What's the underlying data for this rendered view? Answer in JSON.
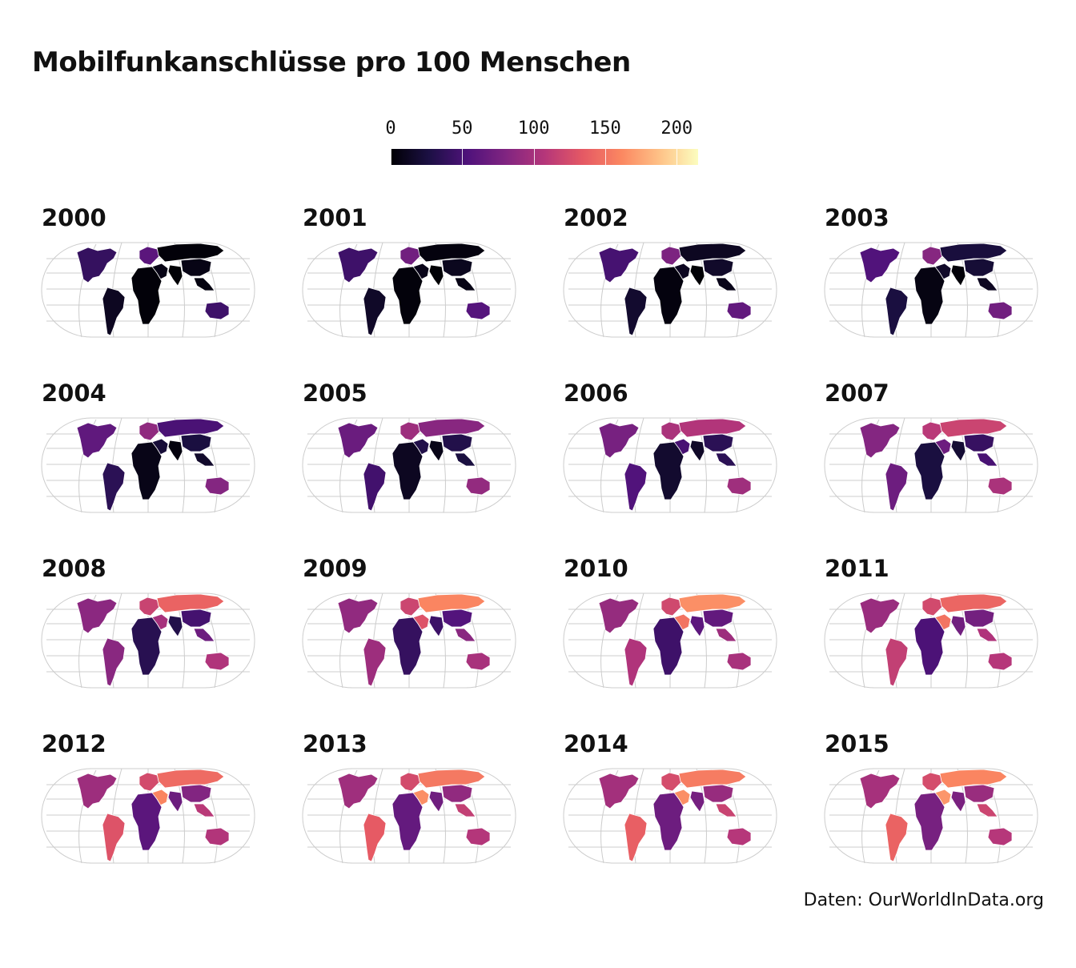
{
  "title": "Mobilfunkanschlüsse pro 100 Menschen",
  "source": "Daten: OurWorldInData.org",
  "legend": {
    "ticks": [
      0,
      50,
      100,
      150,
      200
    ],
    "min": 0,
    "max": 215
  },
  "colors": {
    "graticule": "#cccccc",
    "border": "#ffffff",
    "palette_magma": [
      "#000004",
      "#1c1044",
      "#4f127b",
      "#812581",
      "#b5367a",
      "#e55964",
      "#fb8761",
      "#fec287",
      "#fcfdbf"
    ]
  },
  "chart_data": {
    "type": "choropleth-small-multiples",
    "measure": "Mobilfunkanschlüsse pro 100 Menschen",
    "color_scale": "magma",
    "range": [
      0,
      215
    ],
    "panels": [
      {
        "year": "2000",
        "values": {
          "north_america": 40,
          "europe": 60,
          "south_america": 12,
          "africa": 2,
          "russia": 2,
          "middle_east": 7,
          "south_asia": 1,
          "east_asia": 7,
          "southeast_asia": 5,
          "australia": 45
        }
      },
      {
        "year": "2001",
        "values": {
          "north_america": 45,
          "europe": 72,
          "south_america": 15,
          "africa": 3,
          "russia": 4,
          "middle_east": 9,
          "south_asia": 1,
          "east_asia": 11,
          "southeast_asia": 7,
          "australia": 57
        }
      },
      {
        "year": "2002",
        "values": {
          "north_america": 49,
          "europe": 78,
          "south_america": 18,
          "africa": 4,
          "russia": 12,
          "middle_east": 12,
          "south_asia": 1,
          "east_asia": 16,
          "southeast_asia": 9,
          "australia": 64
        }
      },
      {
        "year": "2003",
        "values": {
          "north_america": 55,
          "europe": 83,
          "south_america": 25,
          "africa": 6,
          "russia": 24,
          "middle_east": 16,
          "south_asia": 2,
          "east_asia": 21,
          "southeast_asia": 12,
          "australia": 72
        }
      },
      {
        "year": "2004",
        "values": {
          "north_america": 63,
          "europe": 88,
          "south_america": 35,
          "africa": 8,
          "russia": 51,
          "middle_east": 22,
          "south_asia": 4,
          "east_asia": 25,
          "southeast_asia": 17,
          "australia": 82
        }
      },
      {
        "year": "2005",
        "values": {
          "north_america": 68,
          "europe": 95,
          "south_america": 47,
          "africa": 12,
          "russia": 84,
          "middle_east": 30,
          "south_asia": 8,
          "east_asia": 30,
          "southeast_asia": 25,
          "australia": 90
        }
      },
      {
        "year": "2006",
        "values": {
          "north_america": 75,
          "europe": 102,
          "south_america": 55,
          "africa": 18,
          "russia": 106,
          "middle_east": 50,
          "south_asia": 15,
          "east_asia": 35,
          "southeast_asia": 35,
          "australia": 96
        }
      },
      {
        "year": "2007",
        "values": {
          "north_america": 82,
          "europe": 110,
          "south_america": 70,
          "africa": 25,
          "russia": 119,
          "middle_east": 70,
          "south_asia": 20,
          "east_asia": 41,
          "southeast_asia": 50,
          "australia": 102
        }
      },
      {
        "year": "2008",
        "values": {
          "north_america": 86,
          "europe": 118,
          "south_america": 85,
          "africa": 33,
          "russia": 140,
          "middle_east": 100,
          "south_asia": 30,
          "east_asia": 48,
          "southeast_asia": 70,
          "australia": 105
        }
      },
      {
        "year": "2009",
        "values": {
          "north_america": 89,
          "europe": 120,
          "south_america": 95,
          "africa": 40,
          "russia": 160,
          "middle_east": 130,
          "south_asia": 44,
          "east_asia": 56,
          "southeast_asia": 85,
          "australia": 101
        }
      },
      {
        "year": "2010",
        "values": {
          "north_america": 91,
          "europe": 122,
          "south_america": 105,
          "africa": 45,
          "russia": 165,
          "middle_east": 150,
          "south_asia": 61,
          "east_asia": 64,
          "southeast_asia": 95,
          "australia": 101
        }
      },
      {
        "year": "2011",
        "values": {
          "north_america": 93,
          "europe": 123,
          "south_america": 115,
          "africa": 52,
          "russia": 142,
          "middle_east": 150,
          "south_asia": 72,
          "east_asia": 73,
          "southeast_asia": 105,
          "australia": 108
        }
      },
      {
        "year": "2012",
        "values": {
          "north_america": 95,
          "europe": 124,
          "south_america": 130,
          "africa": 60,
          "russia": 145,
          "middle_east": 160,
          "south_asia": 69,
          "east_asia": 81,
          "southeast_asia": 110,
          "australia": 106
        }
      },
      {
        "year": "2013",
        "values": {
          "north_america": 96,
          "europe": 124,
          "south_america": 135,
          "africa": 65,
          "russia": 153,
          "middle_east": 165,
          "south_asia": 71,
          "east_asia": 89,
          "southeast_asia": 115,
          "australia": 107
        }
      },
      {
        "year": "2014",
        "values": {
          "north_america": 98,
          "europe": 125,
          "south_america": 138,
          "africa": 70,
          "russia": 155,
          "middle_east": 165,
          "south_asia": 74,
          "east_asia": 92,
          "southeast_asia": 118,
          "australia": 108
        }
      },
      {
        "year": "2015",
        "values": {
          "north_america": 100,
          "europe": 125,
          "south_america": 140,
          "africa": 75,
          "russia": 160,
          "middle_east": 168,
          "south_asia": 77,
          "east_asia": 93,
          "southeast_asia": 120,
          "australia": 108
        }
      }
    ]
  }
}
